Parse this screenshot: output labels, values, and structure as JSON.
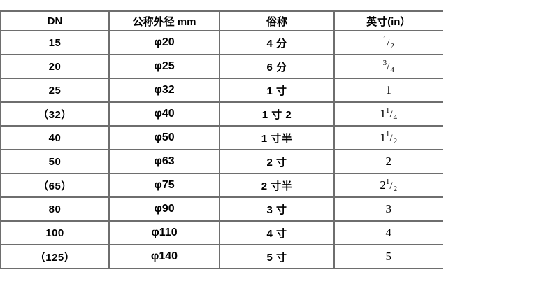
{
  "colors": {
    "grid": "#6e6e6e",
    "grid_light_right_edge": "#cfcfcf",
    "text": "#000000",
    "background": "#ffffff"
  },
  "table": {
    "headers": [
      {
        "label": "DN"
      },
      {
        "label": "公称外径 mm"
      },
      {
        "label": "俗称"
      },
      {
        "label": "英寸(in）"
      }
    ],
    "rows": [
      {
        "dn": "15",
        "od": "φ20",
        "common": "4 分",
        "inch": {
          "whole": "",
          "num": "1",
          "den": "2"
        }
      },
      {
        "dn": "20",
        "od": "φ25",
        "common": "6 分",
        "inch": {
          "whole": "",
          "num": "3",
          "den": "4"
        }
      },
      {
        "dn": "25",
        "od": "φ32",
        "common": "1 寸",
        "inch": {
          "whole": "1",
          "num": "",
          "den": ""
        }
      },
      {
        "dn": "（32）",
        "od": "φ40",
        "common": "1 寸 2",
        "inch": {
          "whole": "1",
          "num": "1",
          "den": "4"
        }
      },
      {
        "dn": "40",
        "od": "φ50",
        "common": "1 寸半",
        "inch": {
          "whole": "1",
          "num": "1",
          "den": "2"
        }
      },
      {
        "dn": "50",
        "od": "φ63",
        "common": "2 寸",
        "inch": {
          "whole": "2",
          "num": "",
          "den": ""
        }
      },
      {
        "dn": "（65）",
        "od": "φ75",
        "common": "2 寸半",
        "inch": {
          "whole": "2",
          "num": "1",
          "den": "2"
        }
      },
      {
        "dn": "80",
        "od": "φ90",
        "common": "3 寸",
        "inch": {
          "whole": "3",
          "num": "",
          "den": ""
        }
      },
      {
        "dn": "100",
        "od": "φ110",
        "common": "4 寸",
        "inch": {
          "whole": "4",
          "num": "",
          "den": ""
        }
      },
      {
        "dn": "（125）",
        "od": "φ140",
        "common": "5 寸",
        "inch": {
          "whole": "5",
          "num": "",
          "den": ""
        }
      }
    ]
  }
}
